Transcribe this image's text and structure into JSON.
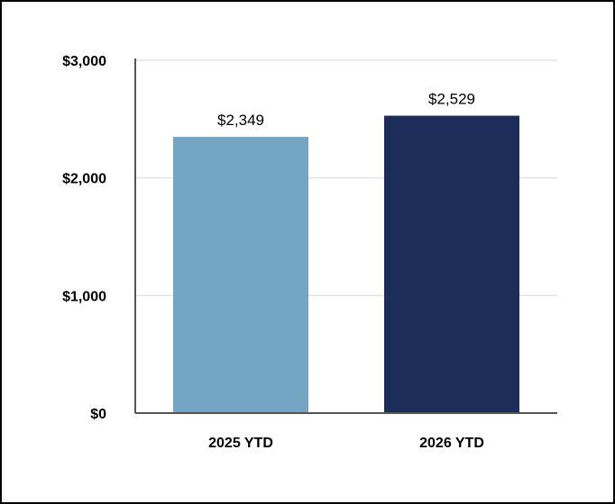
{
  "chart_data": {
    "type": "bar",
    "title": "",
    "xlabel": "",
    "ylabel": "",
    "categories": [
      "2025 YTD",
      "2026 YTD"
    ],
    "values": [
      2349,
      2529
    ],
    "data_labels": [
      "$2,349",
      "$2,529"
    ],
    "ylim": [
      0,
      3000
    ],
    "yticks": [
      0,
      1000,
      2000,
      3000
    ],
    "ytick_labels": [
      "$0",
      "$1,000",
      "$2,000",
      "$3,000"
    ],
    "grid": true,
    "legend": "none",
    "colors": [
      "#74a5c5",
      "#1d2d5a"
    ]
  },
  "style": {
    "gridline_color": "#e3e3e3",
    "axis_color": "#555555",
    "frame_color": "#000000"
  }
}
